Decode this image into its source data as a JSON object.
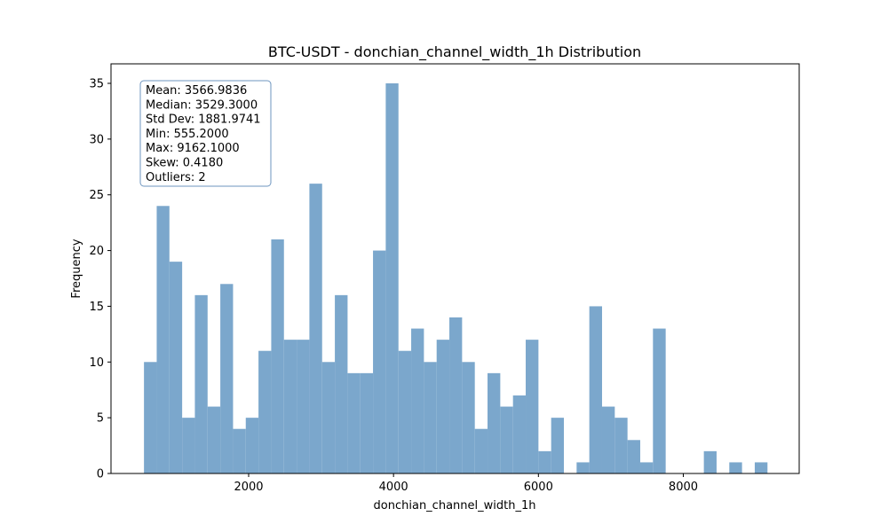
{
  "chart_data": {
    "type": "bar",
    "title": "BTC-USDT - donchian_channel_width_1h Distribution",
    "xlabel": "donchian_channel_width_1h",
    "ylabel": "Frequency",
    "bar_color": "#7ba7cc",
    "frame_color": "#000000",
    "stats_box_border": "#6e95bf",
    "xlim": [
      100,
      9600
    ],
    "ylim": [
      0,
      36.75
    ],
    "xticks": [
      2000,
      4000,
      6000,
      8000
    ],
    "xtick_labels": [
      "2000",
      "4000",
      "6000",
      "8000"
    ],
    "yticks": [
      0,
      5,
      10,
      15,
      20,
      25,
      30,
      35
    ],
    "ytick_labels": [
      "0",
      "5",
      "10",
      "15",
      "20",
      "25",
      "30",
      "35"
    ],
    "bin_start": 555.2,
    "bin_end": 9162.1,
    "counts": [
      10,
      24,
      19,
      5,
      16,
      6,
      17,
      4,
      5,
      11,
      21,
      12,
      12,
      26,
      10,
      16,
      9,
      9,
      20,
      35,
      11,
      13,
      10,
      12,
      14,
      10,
      4,
      9,
      6,
      7,
      12,
      2,
      5,
      0,
      1,
      15,
      6,
      5,
      3,
      1,
      13,
      0,
      0,
      0,
      2,
      0,
      1,
      0,
      1
    ],
    "stats": [
      "Mean: 3566.9836",
      "Median: 3529.3000",
      "Std Dev: 1881.9741",
      "Min: 555.2000",
      "Max: 9162.1000",
      "Skew: 0.4180",
      "Outliers: 2"
    ]
  }
}
